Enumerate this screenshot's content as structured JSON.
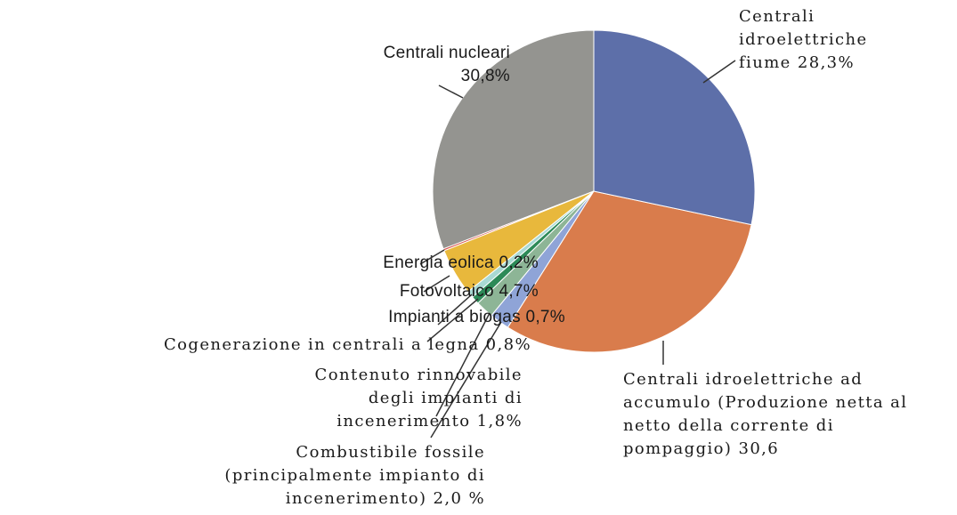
{
  "chart_data": {
    "type": "pie",
    "categories": [
      "Centrali\nidroelettriche\nfiume",
      "Centrali idroelettriche ad\naccumulo (Produzione netta al\nnetto della corrente di\npompaggio)",
      "Combustibile fossile\n(principalmente impianto di\nincenerimento)",
      "Contenuto rinnovabile\ndegli impianti di\nincenerimento",
      "Cogenerazione in centrali a legna",
      "Impianti a biogas",
      "Fotovoltaico",
      "Energia eolica",
      "Centrali nucleari"
    ],
    "values": [
      28.3,
      30.6,
      2.0,
      1.8,
      0.8,
      0.7,
      4.7,
      0.2,
      30.8
    ],
    "value_labels": [
      "28,3%",
      "30,6",
      "2,0 %",
      "1,8%",
      "0,8%",
      "0,7%",
      "4,7%",
      "0,2%",
      "30,8%"
    ],
    "colors": [
      "#5d6fa9",
      "#d97c4c",
      "#8fa4d7",
      "#8db596",
      "#2d8a58",
      "#a9d9d3",
      "#e8b83c",
      "#d6524c",
      "#949490"
    ]
  }
}
